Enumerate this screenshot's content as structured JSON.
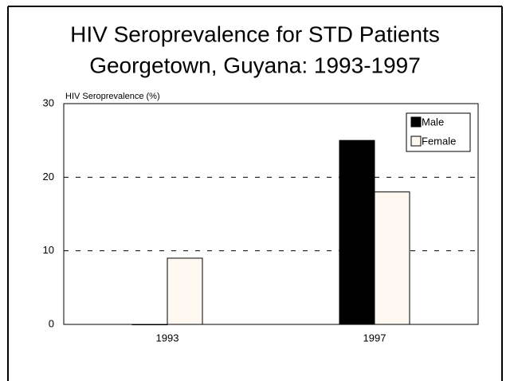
{
  "chart_data": {
    "type": "bar",
    "title": [
      "HIV Seroprevalence for STD Patients",
      "Georgetown, Guyana:  1993-1997"
    ],
    "y_label": "HIV Seroprevalence (%)",
    "categories": [
      "1993",
      "1997"
    ],
    "series": [
      {
        "name": "Male",
        "color": "#000000",
        "values": [
          0,
          25
        ]
      },
      {
        "name": "Female",
        "color": "#fff8f0",
        "values": [
          9,
          18
        ]
      }
    ],
    "ylim": [
      0,
      30
    ],
    "yticks": [
      0,
      10,
      20,
      30
    ],
    "grid": true,
    "legend": "upper right"
  }
}
